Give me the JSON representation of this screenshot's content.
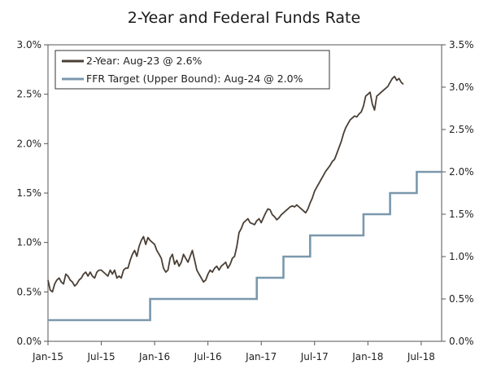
{
  "chart_data": {
    "type": "line",
    "title": "2-Year and Federal Funds Rate",
    "x_ticks": [
      "Jan-15",
      "Jul-15",
      "Jan-16",
      "Jul-16",
      "Jan-17",
      "Jul-17",
      "Jan-18",
      "Jul-18"
    ],
    "x_range": [
      "2015-01",
      "2018-09"
    ],
    "y_left": {
      "range": [
        0,
        3.0
      ],
      "ticks": [
        "0.0%",
        "0.5%",
        "1.0%",
        "1.5%",
        "2.0%",
        "2.5%",
        "3.0%"
      ]
    },
    "y_right": {
      "range": [
        0,
        3.5
      ],
      "ticks": [
        "0.0%",
        "0.5%",
        "1.0%",
        "1.5%",
        "2.0%",
        "2.5%",
        "3.0%",
        "3.5%"
      ]
    },
    "grid": false,
    "legend_position": "top-left",
    "colors": {
      "two_year": "#4a3f35",
      "ffr": "#7a98ad",
      "axis": "#555555"
    },
    "series": [
      {
        "name": "2-Year: Aug-23 @ 2.6%",
        "axis": "left",
        "points": [
          [
            0.0,
            0.62
          ],
          [
            0.25,
            0.52
          ],
          [
            0.5,
            0.5
          ],
          [
            0.75,
            0.58
          ],
          [
            1.0,
            0.62
          ],
          [
            1.25,
            0.64
          ],
          [
            1.5,
            0.6
          ],
          [
            1.75,
            0.58
          ],
          [
            2.0,
            0.68
          ],
          [
            2.25,
            0.66
          ],
          [
            2.5,
            0.62
          ],
          [
            2.75,
            0.6
          ],
          [
            3.0,
            0.56
          ],
          [
            3.25,
            0.58
          ],
          [
            3.5,
            0.62
          ],
          [
            3.75,
            0.64
          ],
          [
            4.0,
            0.68
          ],
          [
            4.25,
            0.7
          ],
          [
            4.5,
            0.66
          ],
          [
            4.75,
            0.7
          ],
          [
            5.0,
            0.66
          ],
          [
            5.25,
            0.64
          ],
          [
            5.5,
            0.7
          ],
          [
            5.75,
            0.72
          ],
          [
            6.0,
            0.72
          ],
          [
            6.25,
            0.7
          ],
          [
            6.5,
            0.68
          ],
          [
            6.75,
            0.66
          ],
          [
            7.0,
            0.72
          ],
          [
            7.25,
            0.68
          ],
          [
            7.5,
            0.72
          ],
          [
            7.75,
            0.64
          ],
          [
            8.0,
            0.66
          ],
          [
            8.25,
            0.64
          ],
          [
            8.5,
            0.72
          ],
          [
            8.75,
            0.74
          ],
          [
            9.0,
            0.74
          ],
          [
            9.25,
            0.82
          ],
          [
            9.5,
            0.88
          ],
          [
            9.75,
            0.92
          ],
          [
            10.0,
            0.86
          ],
          [
            10.25,
            0.96
          ],
          [
            10.5,
            1.02
          ],
          [
            10.75,
            1.06
          ],
          [
            11.0,
            0.98
          ],
          [
            11.25,
            1.05
          ],
          [
            11.5,
            1.02
          ],
          [
            11.75,
            1.0
          ],
          [
            12.0,
            0.98
          ],
          [
            12.25,
            0.92
          ],
          [
            12.5,
            0.88
          ],
          [
            12.75,
            0.84
          ],
          [
            13.0,
            0.74
          ],
          [
            13.25,
            0.7
          ],
          [
            13.5,
            0.72
          ],
          [
            13.75,
            0.84
          ],
          [
            14.0,
            0.88
          ],
          [
            14.25,
            0.78
          ],
          [
            14.5,
            0.82
          ],
          [
            14.75,
            0.76
          ],
          [
            15.0,
            0.8
          ],
          [
            15.25,
            0.88
          ],
          [
            15.5,
            0.84
          ],
          [
            15.75,
            0.8
          ],
          [
            16.0,
            0.86
          ],
          [
            16.25,
            0.92
          ],
          [
            16.5,
            0.82
          ],
          [
            16.75,
            0.72
          ],
          [
            17.0,
            0.68
          ],
          [
            17.25,
            0.64
          ],
          [
            17.5,
            0.6
          ],
          [
            17.75,
            0.62
          ],
          [
            18.0,
            0.68
          ],
          [
            18.25,
            0.72
          ],
          [
            18.5,
            0.7
          ],
          [
            18.75,
            0.74
          ],
          [
            19.0,
            0.76
          ],
          [
            19.25,
            0.72
          ],
          [
            19.5,
            0.76
          ],
          [
            19.75,
            0.78
          ],
          [
            20.0,
            0.8
          ],
          [
            20.25,
            0.74
          ],
          [
            20.5,
            0.78
          ],
          [
            20.75,
            0.84
          ],
          [
            21.0,
            0.86
          ],
          [
            21.25,
            0.96
          ],
          [
            21.5,
            1.1
          ],
          [
            21.75,
            1.14
          ],
          [
            22.0,
            1.2
          ],
          [
            22.25,
            1.22
          ],
          [
            22.5,
            1.24
          ],
          [
            22.75,
            1.2
          ],
          [
            23.0,
            1.19
          ],
          [
            23.25,
            1.18
          ],
          [
            23.5,
            1.22
          ],
          [
            23.75,
            1.24
          ],
          [
            24.0,
            1.2
          ],
          [
            24.25,
            1.25
          ],
          [
            24.5,
            1.3
          ],
          [
            24.75,
            1.34
          ],
          [
            25.0,
            1.33
          ],
          [
            25.25,
            1.28
          ],
          [
            25.5,
            1.26
          ],
          [
            25.75,
            1.23
          ],
          [
            26.0,
            1.25
          ],
          [
            26.25,
            1.28
          ],
          [
            26.5,
            1.3
          ],
          [
            26.75,
            1.32
          ],
          [
            27.0,
            1.34
          ],
          [
            27.25,
            1.36
          ],
          [
            27.5,
            1.37
          ],
          [
            27.75,
            1.36
          ],
          [
            28.0,
            1.38
          ],
          [
            28.25,
            1.36
          ],
          [
            28.5,
            1.34
          ],
          [
            28.75,
            1.32
          ],
          [
            29.0,
            1.3
          ],
          [
            29.25,
            1.34
          ],
          [
            29.5,
            1.4
          ],
          [
            29.75,
            1.45
          ],
          [
            30.0,
            1.52
          ],
          [
            30.25,
            1.56
          ],
          [
            30.5,
            1.6
          ],
          [
            30.75,
            1.64
          ],
          [
            31.0,
            1.68
          ],
          [
            31.25,
            1.72
          ],
          [
            31.5,
            1.75
          ],
          [
            31.75,
            1.78
          ],
          [
            32.0,
            1.82
          ],
          [
            32.25,
            1.84
          ],
          [
            32.5,
            1.9
          ],
          [
            32.75,
            1.96
          ],
          [
            33.0,
            2.02
          ],
          [
            33.25,
            2.1
          ],
          [
            33.5,
            2.16
          ],
          [
            33.75,
            2.2
          ],
          [
            34.0,
            2.24
          ],
          [
            34.25,
            2.26
          ],
          [
            34.5,
            2.28
          ],
          [
            34.75,
            2.27
          ],
          [
            35.0,
            2.3
          ],
          [
            35.25,
            2.32
          ],
          [
            35.5,
            2.38
          ],
          [
            35.75,
            2.48
          ],
          [
            36.0,
            2.5
          ],
          [
            36.25,
            2.52
          ],
          [
            36.5,
            2.4
          ],
          [
            36.75,
            2.34
          ],
          [
            37.0,
            2.48
          ],
          [
            37.25,
            2.5
          ],
          [
            37.5,
            2.52
          ],
          [
            37.75,
            2.54
          ],
          [
            38.0,
            2.56
          ],
          [
            38.25,
            2.58
          ],
          [
            38.5,
            2.62
          ],
          [
            38.75,
            2.66
          ],
          [
            39.0,
            2.68
          ],
          [
            39.25,
            2.64
          ],
          [
            39.5,
            2.66
          ],
          [
            39.75,
            2.62
          ],
          [
            40.0,
            2.6
          ]
        ]
      },
      {
        "name": "FFR Target (Upper Bound): Aug-24 @ 2.0%",
        "axis": "right",
        "points": [
          [
            0.0,
            0.25
          ],
          [
            11.5,
            0.25
          ],
          [
            11.5,
            0.5
          ],
          [
            23.5,
            0.5
          ],
          [
            23.5,
            0.75
          ],
          [
            26.5,
            0.75
          ],
          [
            26.5,
            1.0
          ],
          [
            29.5,
            1.0
          ],
          [
            29.5,
            1.25
          ],
          [
            35.5,
            1.25
          ],
          [
            35.5,
            1.5
          ],
          [
            38.5,
            1.5
          ],
          [
            38.5,
            1.75
          ],
          [
            41.5,
            1.75
          ],
          [
            41.5,
            2.0
          ],
          [
            44.3,
            2.0
          ]
        ]
      }
    ]
  }
}
